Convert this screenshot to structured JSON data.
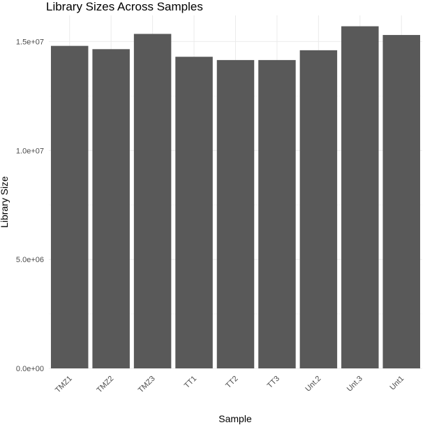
{
  "chart_data": {
    "type": "bar",
    "title": "Library Sizes Across Samples",
    "xlabel": "Sample",
    "ylabel": "Library Size",
    "categories": [
      "TMZ1",
      "TMZ2",
      "TMZ3",
      "TT1",
      "TT2",
      "TT3",
      "Unt.2",
      "Unt.3",
      "Unt1"
    ],
    "values": [
      14800000,
      14650000,
      15350000,
      14300000,
      14150000,
      14150000,
      14600000,
      15700000,
      15300000
    ],
    "yticks": [
      0,
      5000000,
      10000000,
      15000000
    ],
    "ytick_labels": [
      "0.0e+00",
      "5.0e+06",
      "1.0e+07",
      "1.5e+07"
    ],
    "ylim": [
      0,
      16200000
    ],
    "grid": true,
    "legend": "none",
    "bar_color": "#595959"
  }
}
